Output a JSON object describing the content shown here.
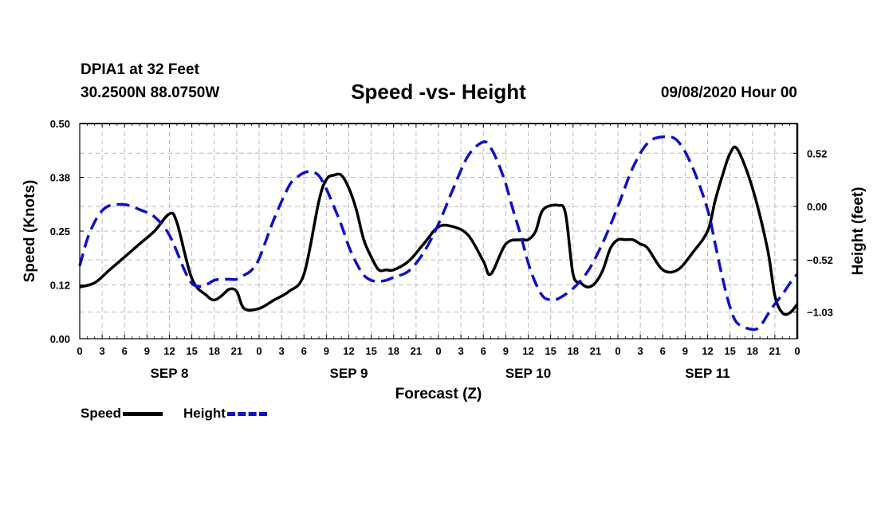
{
  "header": {
    "station": "DPIA1 at 32 Feet",
    "coords": "30.2500N 88.0750W",
    "title": "Speed -vs- Height",
    "datetime": "09/08/2020 Hour 00"
  },
  "legend": {
    "speed_label": "Speed",
    "height_label": "Height"
  },
  "colors": {
    "speed": "#000000",
    "height": "#1010c8",
    "grid": "#bbbbbb"
  },
  "chart_data": {
    "type": "line",
    "title": "Speed -vs- Height",
    "xlabel": "Forecast (Z)",
    "ylabel": "Speed (Knots)",
    "y2label": "Height (feet)",
    "xlim": [
      0,
      96
    ],
    "ylim": [
      0,
      0.5
    ],
    "y2lim": [
      -1.29,
      0.81
    ],
    "grid": true,
    "legend_position": "bottom-left",
    "x_tick_labels": [
      "0",
      "3",
      "6",
      "9",
      "12",
      "15",
      "18",
      "21",
      "0",
      "3",
      "6",
      "9",
      "12",
      "15",
      "18",
      "21",
      "0",
      "3",
      "6",
      "9",
      "12",
      "15",
      "18",
      "21",
      "0",
      "3",
      "6",
      "9",
      "12",
      "15",
      "18",
      "21",
      "0"
    ],
    "day_labels": [
      {
        "label": "SEP 8",
        "x": 12
      },
      {
        "label": "SEP 9",
        "x": 36
      },
      {
        "label": "SEP 10",
        "x": 60
      },
      {
        "label": "SEP 11",
        "x": 84
      }
    ],
    "y_ticks": [
      0,
      0.125,
      0.25,
      0.375,
      0.5
    ],
    "y_tick_labels": [
      "0.00",
      "0.12",
      "0.25",
      "0.38",
      "0.50"
    ],
    "y2_ticks": [
      0.52,
      0.0,
      -0.52,
      -1.03
    ],
    "y2_tick_labels": [
      "0.52",
      "0.00",
      "−0.52",
      "−1.03"
    ],
    "series": [
      {
        "name": "Speed",
        "axis": "left",
        "style": "solid",
        "x": [
          0,
          2,
          4,
          6,
          8,
          10,
          12,
          13,
          15,
          17,
          18,
          19,
          20,
          21,
          22,
          24,
          26,
          28,
          30,
          32,
          33,
          34,
          35,
          36,
          37,
          38,
          39,
          40,
          41,
          42,
          44,
          46,
          48,
          50,
          52,
          54,
          55,
          57,
          59,
          60,
          61,
          62,
          64,
          65,
          66,
          67,
          68,
          69,
          70,
          71,
          72,
          73,
          74,
          75,
          76,
          78,
          80,
          82,
          84,
          85,
          86,
          87,
          88,
          90,
          92,
          93,
          94,
          95,
          96
        ],
        "values": [
          0.12,
          0.13,
          0.16,
          0.19,
          0.22,
          0.25,
          0.29,
          0.27,
          0.14,
          0.1,
          0.09,
          0.1,
          0.115,
          0.11,
          0.07,
          0.07,
          0.09,
          0.11,
          0.15,
          0.32,
          0.37,
          0.38,
          0.38,
          0.35,
          0.3,
          0.23,
          0.19,
          0.16,
          0.16,
          0.16,
          0.18,
          0.22,
          0.26,
          0.26,
          0.24,
          0.18,
          0.15,
          0.22,
          0.23,
          0.23,
          0.25,
          0.3,
          0.31,
          0.29,
          0.15,
          0.13,
          0.12,
          0.13,
          0.16,
          0.21,
          0.23,
          0.23,
          0.23,
          0.22,
          0.21,
          0.16,
          0.16,
          0.2,
          0.25,
          0.32,
          0.38,
          0.43,
          0.44,
          0.35,
          0.21,
          0.1,
          0.06,
          0.06,
          0.08
        ]
      },
      {
        "name": "Height",
        "axis": "right",
        "style": "dashed",
        "x": [
          0,
          1,
          2,
          3,
          4,
          5,
          6,
          7,
          8,
          10,
          12,
          14,
          15,
          16,
          17,
          18,
          19,
          20,
          21,
          22,
          23,
          24,
          26,
          28,
          29,
          30,
          31,
          32,
          33,
          34,
          35,
          36,
          37,
          38,
          39,
          40,
          41,
          42,
          44,
          46,
          48,
          50,
          52,
          54,
          55,
          56,
          57,
          58,
          59,
          60,
          61,
          62,
          63,
          64,
          66,
          68,
          70,
          72,
          74,
          76,
          78,
          80,
          82,
          84,
          85,
          86,
          87,
          88,
          90,
          91,
          92,
          93,
          94,
          95,
          96
        ],
        "values": [
          -0.58,
          -0.32,
          -0.15,
          -0.04,
          0.01,
          0.02,
          0.02,
          0.0,
          -0.03,
          -0.1,
          -0.28,
          -0.62,
          -0.75,
          -0.78,
          -0.76,
          -0.72,
          -0.71,
          -0.71,
          -0.71,
          -0.67,
          -0.62,
          -0.51,
          -0.12,
          0.2,
          0.28,
          0.33,
          0.34,
          0.3,
          0.17,
          0.0,
          -0.18,
          -0.39,
          -0.55,
          -0.67,
          -0.72,
          -0.73,
          -0.72,
          -0.69,
          -0.63,
          -0.45,
          -0.17,
          0.18,
          0.5,
          0.63,
          0.57,
          0.42,
          0.22,
          -0.04,
          -0.28,
          -0.55,
          -0.75,
          -0.88,
          -0.91,
          -0.9,
          -0.8,
          -0.63,
          -0.35,
          0.0,
          0.38,
          0.62,
          0.68,
          0.64,
          0.38,
          -0.03,
          -0.36,
          -0.7,
          -0.98,
          -1.14,
          -1.2,
          -1.17,
          -1.06,
          -0.95,
          -0.86,
          -0.75,
          -0.66
        ]
      }
    ]
  }
}
